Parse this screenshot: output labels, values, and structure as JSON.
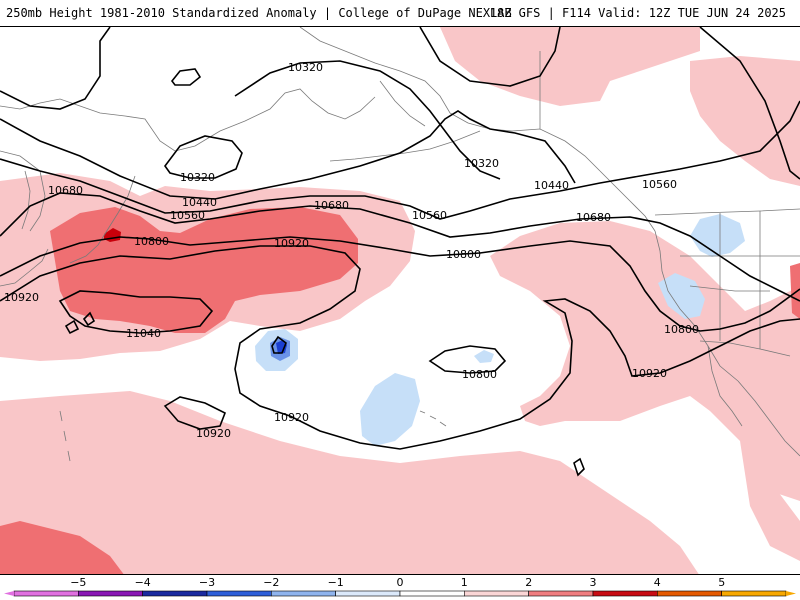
{
  "header": {
    "title": "250mb Height 1981-2010 Standardized Anomaly | College of DuPage NEXLAB",
    "run_info": "18Z GFS | F114 Valid: 12Z TUE JUN 24 2025"
  },
  "map": {
    "contours": [
      {
        "label": "10320"
      },
      {
        "label": "10320"
      },
      {
        "label": "10320"
      },
      {
        "label": "10440"
      },
      {
        "label": "10440"
      },
      {
        "label": "10560"
      },
      {
        "label": "10560"
      },
      {
        "label": "10560"
      },
      {
        "label": "10680"
      },
      {
        "label": "10680"
      },
      {
        "label": "10680"
      },
      {
        "label": "10800"
      },
      {
        "label": "10800"
      },
      {
        "label": "10800"
      },
      {
        "label": "10800"
      },
      {
        "label": "10920"
      },
      {
        "label": "10920"
      },
      {
        "label": "10920"
      },
      {
        "label": "10920"
      },
      {
        "label": "10920"
      },
      {
        "label": "11040"
      }
    ],
    "colors": {
      "pos1": "#f9c6c8",
      "pos2": "#ef6f72",
      "pos3": "#c8000a",
      "neg1": "#c6dff8",
      "neg2": "#6b93e8",
      "neg3": "#1b3fd1",
      "land_line": "#7a7a7a",
      "contour": "#000000"
    }
  },
  "colorbar": {
    "ticks": [
      "−5",
      "−4",
      "−3",
      "−2",
      "−1",
      "0",
      "1",
      "2",
      "3",
      "4",
      "5"
    ],
    "colors": [
      "#e070e0",
      "#8a17b5",
      "#1a2aa0",
      "#2e5fd9",
      "#8fb4ee",
      "#dbe9fb",
      "#ffffff",
      "#fbd6d6",
      "#ef7d80",
      "#c80c14",
      "#e55a00",
      "#f7a800"
    ]
  }
}
